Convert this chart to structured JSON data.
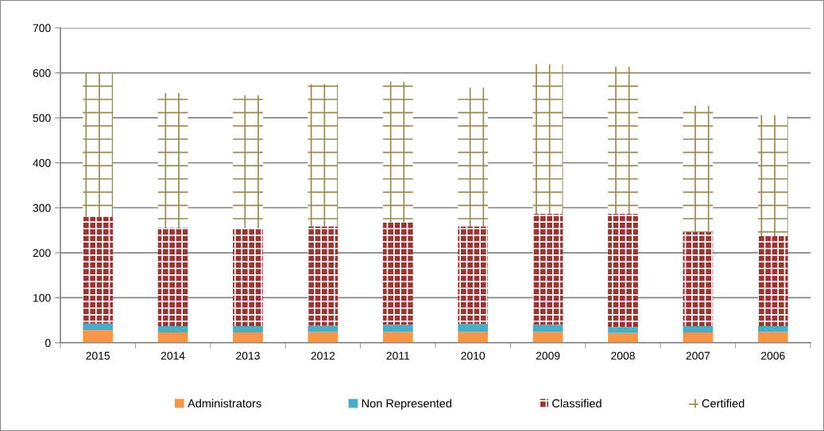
{
  "chart_data": {
    "type": "bar",
    "stacked": true,
    "categories": [
      "2015",
      "2014",
      "2013",
      "2012",
      "2011",
      "2010",
      "2009",
      "2008",
      "2007",
      "2006"
    ],
    "series": [
      {
        "name": "Administrators",
        "color": "#f79646",
        "values": [
          28,
          23,
          23,
          24,
          24,
          24,
          24,
          22,
          23,
          24
        ]
      },
      {
        "name": "Non Represented",
        "color": "#4bacc6",
        "values": [
          15,
          14,
          14,
          14,
          16,
          18,
          16,
          13,
          14,
          13
        ]
      },
      {
        "name": "Classified",
        "color": "#953735",
        "values": [
          237,
          219,
          218,
          221,
          228,
          217,
          247,
          252,
          209,
          200
        ]
      },
      {
        "name": "Certified",
        "color": "#948a54",
        "values": [
          320,
          299,
          295,
          316,
          312,
          308,
          332,
          327,
          281,
          269
        ]
      }
    ],
    "ylim": [
      0,
      700
    ],
    "yticks": [
      0,
      100,
      200,
      300,
      400,
      500,
      600,
      700
    ],
    "grid": "y",
    "legend": "bottom"
  }
}
